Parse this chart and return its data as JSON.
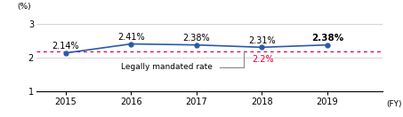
{
  "years": [
    2015,
    2016,
    2017,
    2018,
    2019
  ],
  "values": [
    2.14,
    2.41,
    2.38,
    2.31,
    2.38
  ],
  "labels": [
    "2.14%",
    "2.41%",
    "2.38%",
    "2.31%",
    "2.38%"
  ],
  "line_color": "#2A5AA8",
  "marker_color": "#2A5AA8",
  "mandated_rate": 2.2,
  "mandated_rate_color": "#e0003c",
  "mandated_label": "2.2%",
  "mandated_text": "Legally mandated rate",
  "ylim": [
    1.0,
    3.3
  ],
  "yticks": [
    1,
    2,
    3
  ],
  "bg_color": "#ffffff",
  "ylabel": "(%)",
  "xlabel": "(FY)"
}
